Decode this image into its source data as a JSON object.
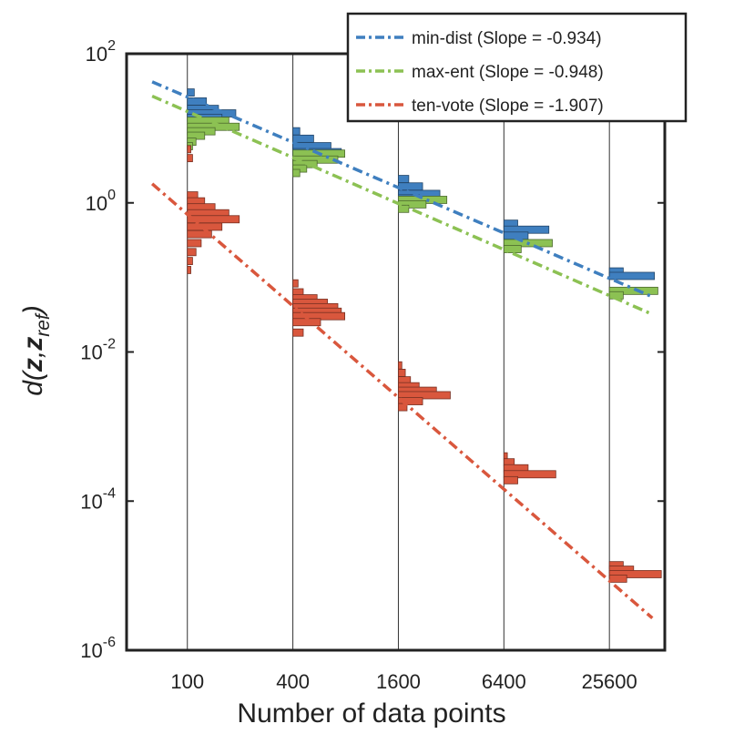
{
  "chart_data": {
    "type": "line",
    "title": "",
    "xlabel": "Number of data points",
    "ylabel": {
      "prefix": "d(",
      "var1": "z",
      "sep": ",",
      "var2": "z",
      "subscript": "ref",
      "suffix": ")"
    },
    "x_scale": "log",
    "y_scale": "log",
    "xlim": [
      45,
      53000
    ],
    "ylim": [
      1e-06,
      100
    ],
    "x_ticks": [
      {
        "value": 100,
        "label": "100"
      },
      {
        "value": 400,
        "label": "400"
      },
      {
        "value": 1600,
        "label": "1600"
      },
      {
        "value": 6400,
        "label": "6400"
      },
      {
        "value": 25600,
        "label": "25600"
      }
    ],
    "y_ticks": [
      {
        "value": 100,
        "base": "10",
        "exp": "2"
      },
      {
        "value": 1,
        "base": "10",
        "exp": "0"
      },
      {
        "value": 0.01,
        "base": "10",
        "exp": "-2"
      },
      {
        "value": 0.0001,
        "base": "10",
        "exp": "-4"
      },
      {
        "value": 1e-06,
        "base": "10",
        "exp": "-6"
      }
    ],
    "grid": "vertical lines at x ticks",
    "legend_position": "top-right",
    "series": [
      {
        "name": "min-dist",
        "legend_label": "min-dist (Slope = -0.934)",
        "slope": -0.934,
        "color": "#3f7fbf",
        "fit_line": {
          "x": [
            63,
            45000
          ],
          "y": [
            42,
            0.055
          ]
        },
        "histograms": [
          {
            "x": 100,
            "log_values": [
              1.48,
              1.36,
              1.26,
              1.2,
              1.14
            ],
            "counts": [
              4,
              11,
              18,
              28,
              20
            ]
          },
          {
            "x": 400,
            "log_values": [
              0.96,
              0.86,
              0.76,
              0.68,
              0.62
            ],
            "counts": [
              4,
              12,
              22,
              28,
              15
            ]
          },
          {
            "x": 1600,
            "log_values": [
              0.32,
              0.22,
              0.12,
              0.06
            ],
            "counts": [
              6,
              14,
              24,
              12
            ]
          },
          {
            "x": 6400,
            "log_values": [
              -0.28,
              -0.36,
              -0.44
            ],
            "counts": [
              8,
              26,
              14
            ]
          },
          {
            "x": 25600,
            "log_values": [
              -0.92,
              -0.98
            ],
            "counts": [
              8,
              26
            ]
          }
        ]
      },
      {
        "name": "max-ent",
        "legend_label": "max-ent (Slope = -0.948)",
        "slope": -0.948,
        "color": "#8cc153",
        "fit_line": {
          "x": [
            63,
            45000
          ],
          "y": [
            27,
            0.032
          ]
        },
        "histograms": [
          {
            "x": 100,
            "log_values": [
              1.1,
              1.02,
              0.96,
              0.9,
              0.82,
              0.76
            ],
            "counts": [
              24,
              30,
              16,
              10,
              5,
              3
            ]
          },
          {
            "x": 400,
            "log_values": [
              0.66,
              0.58,
              0.52,
              0.46,
              0.4
            ],
            "counts": [
              30,
              26,
              14,
              8,
              4
            ]
          },
          {
            "x": 1600,
            "log_values": [
              0.04,
              -0.02,
              -0.08
            ],
            "counts": [
              28,
              16,
              6
            ]
          },
          {
            "x": 6400,
            "log_values": [
              -0.54,
              -0.62
            ],
            "counts": [
              28,
              10
            ]
          },
          {
            "x": 25600,
            "log_values": [
              -1.18,
              -1.24
            ],
            "counts": [
              28,
              8
            ]
          }
        ]
      },
      {
        "name": "ten-vote",
        "legend_label": "ten-vote (Slope = -1.907)",
        "slope": -1.907,
        "color": "#d9573d",
        "fit_line": {
          "x": [
            63,
            45000
          ],
          "y": [
            1.8,
            2.7e-06
          ]
        },
        "histograms": [
          {
            "x": 100,
            "log_values": [
              0.72,
              0.6,
              0.1,
              0.02,
              -0.06,
              -0.14,
              -0.22,
              -0.32,
              -0.42,
              -0.54,
              -0.66,
              -0.78,
              -0.9
            ],
            "counts": [
              2,
              3,
              6,
              10,
              16,
              24,
              30,
              20,
              14,
              8,
              5,
              3,
              2
            ]
          },
          {
            "x": 400,
            "log_values": [
              -1.08,
              -1.2,
              -1.28,
              -1.34,
              -1.4,
              -1.46,
              -1.52,
              -1.6,
              -1.74
            ],
            "counts": [
              3,
              6,
              14,
              20,
              26,
              28,
              30,
              16,
              6
            ]
          },
          {
            "x": 1600,
            "log_values": [
              -2.18,
              -2.28,
              -2.38,
              -2.46,
              -2.52,
              -2.58,
              -2.66,
              -2.74
            ],
            "counts": [
              2,
              4,
              7,
              12,
              22,
              30,
              14,
              5
            ]
          },
          {
            "x": 6400,
            "log_values": [
              -3.4,
              -3.48,
              -3.56,
              -3.64,
              -3.72
            ],
            "counts": [
              2,
              6,
              14,
              30,
              8
            ]
          },
          {
            "x": 25600,
            "log_values": [
              -4.86,
              -4.92,
              -4.98,
              -5.04
            ],
            "counts": [
              8,
              14,
              30,
              10
            ]
          }
        ]
      }
    ]
  }
}
